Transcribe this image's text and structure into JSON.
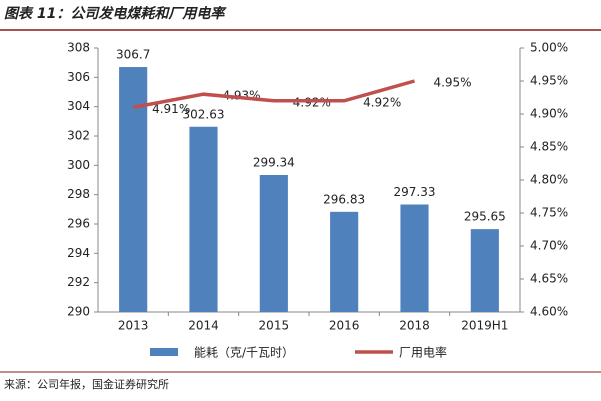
{
  "chart_data": {
    "type": "bar_line",
    "title": "图表 11：公司发电煤耗和厂用电率",
    "source": "来源：公司年报，国金证券研究所",
    "categories": [
      "2013",
      "2014",
      "2015",
      "2016",
      "2018",
      "2019H1"
    ],
    "series": [
      {
        "name": "能耗（克/千瓦时）",
        "type": "bar",
        "color": "#4f81bd",
        "values": [
          306.7,
          302.63,
          299.34,
          296.83,
          297.33,
          295.65
        ]
      },
      {
        "name": "厂用电率",
        "type": "line",
        "axis": "y2",
        "color": "#c0504d",
        "values": [
          4.91,
          4.93,
          4.92,
          4.92,
          4.95,
          null
        ],
        "value_labels": [
          "4.91%",
          "4.93%",
          "4.92%",
          "4.92%",
          "4.95%",
          null
        ]
      }
    ],
    "ylim": [
      290,
      308
    ],
    "yticks": [
      290,
      292,
      294,
      296,
      298,
      300,
      302,
      304,
      306,
      308
    ],
    "y2lim": [
      4.6,
      5.0
    ],
    "y2ticks": [
      {
        "value": 4.6,
        "label": "4.60%"
      },
      {
        "value": 4.65,
        "label": "4.65%"
      },
      {
        "value": 4.7,
        "label": "4.70%"
      },
      {
        "value": 4.75,
        "label": "4.75%"
      },
      {
        "value": 4.8,
        "label": "4.80%"
      },
      {
        "value": 4.85,
        "label": "4.85%"
      },
      {
        "value": 4.9,
        "label": "4.90%"
      },
      {
        "value": 4.95,
        "label": "4.95%"
      },
      {
        "value": 5.0,
        "label": "5.00%"
      }
    ],
    "legend": "bottom"
  }
}
